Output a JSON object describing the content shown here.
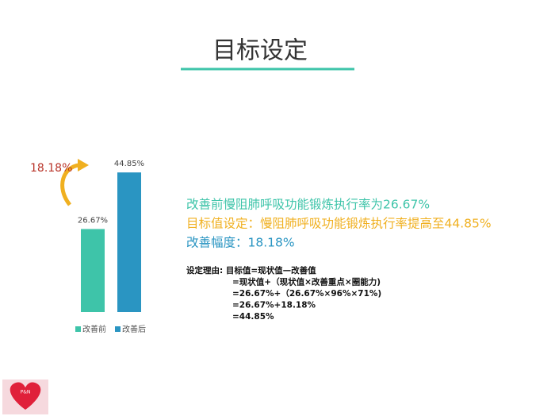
{
  "title": "目标设定",
  "chart_data": {
    "type": "bar",
    "categories": [
      null
    ],
    "series": [
      {
        "name": "改善前",
        "color": "#3ec4a9",
        "values": [
          26.67
        ],
        "value_labels": [
          "26.67%"
        ]
      },
      {
        "name": "改善后",
        "color": "#2a95c2",
        "values": [
          44.85
        ],
        "value_labels": [
          "44.85%"
        ]
      }
    ],
    "ylim": [
      0,
      50
    ],
    "annotations": [
      "18.18%"
    ]
  },
  "summary": [
    {
      "text": "改善前慢阻肺呼吸功能锻炼执行率为26.67%",
      "color": "#3ec4a9"
    },
    {
      "text": "目标值设定：慢阻肺呼吸功能锻炼执行率提高至44.85%",
      "color": "#f0b020"
    },
    {
      "text": "改善幅度：18.18%",
      "color": "#2a95c2"
    }
  ],
  "reasoning": [
    "设定理由: 目标值=现状值—改善值",
    "=现状值+（现状值×改善重点×圈能力)",
    "=26.67%+（26.67%×96%×71%)",
    "=26.67%+18.18%",
    "=44.85%"
  ],
  "logo_text": "P&N"
}
